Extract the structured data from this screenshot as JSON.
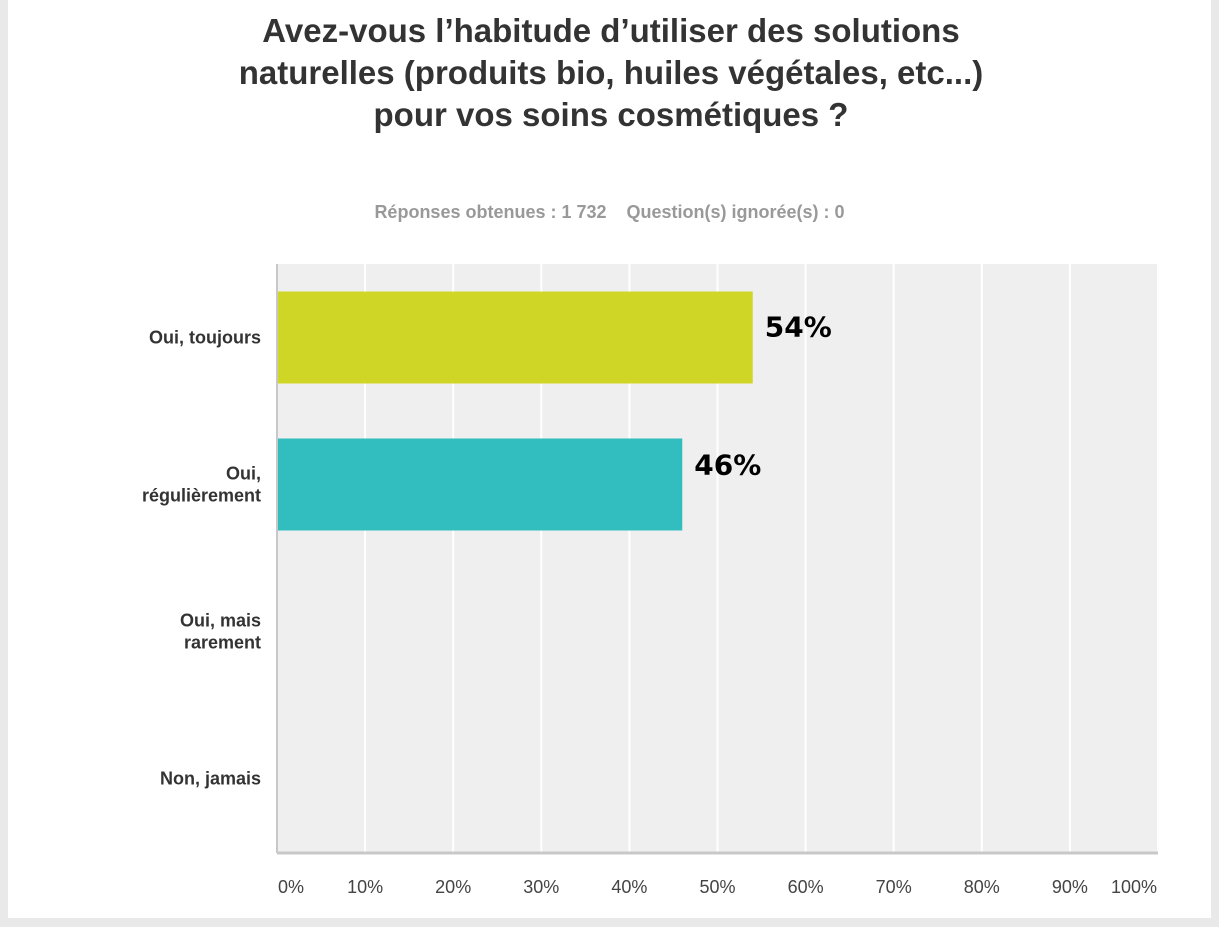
{
  "header": {
    "title": "Avez-vous l’habitude d’utiliser des solutions naturelles (produits bio, huiles végétales, etc...) pour vos soins cosmétiques ?",
    "responses": "Réponses obtenues : 1 732",
    "skipped": "Question(s) ignorée(s) : 0"
  },
  "colors": {
    "bar_1": "#cfd626",
    "bar_2": "#32bdbe",
    "plot_bg": "#efefef",
    "grid": "#ffffff",
    "axis": "#c8c8c8"
  },
  "chart_data": {
    "type": "bar",
    "orientation": "horizontal",
    "title": "Avez-vous l’habitude d’utiliser des solutions naturelles (produits bio, huiles végétales, etc...) pour vos soins cosmétiques ?",
    "categories": [
      [
        "Oui, toujours"
      ],
      [
        "Oui,",
        "régulièrement"
      ],
      [
        "Oui, mais",
        "rarement"
      ],
      [
        "Non, jamais"
      ]
    ],
    "values": [
      54,
      46,
      0,
      0
    ],
    "data_labels": [
      "54%",
      "46%",
      "",
      ""
    ],
    "bar_colors": [
      "#cfd626",
      "#32bdbe",
      "",
      ""
    ],
    "xlim": [
      0,
      100
    ],
    "x_ticks": [
      "0%",
      "10%",
      "20%",
      "30%",
      "40%",
      "50%",
      "60%",
      "70%",
      "80%",
      "90%",
      "100%"
    ],
    "grid": true
  }
}
